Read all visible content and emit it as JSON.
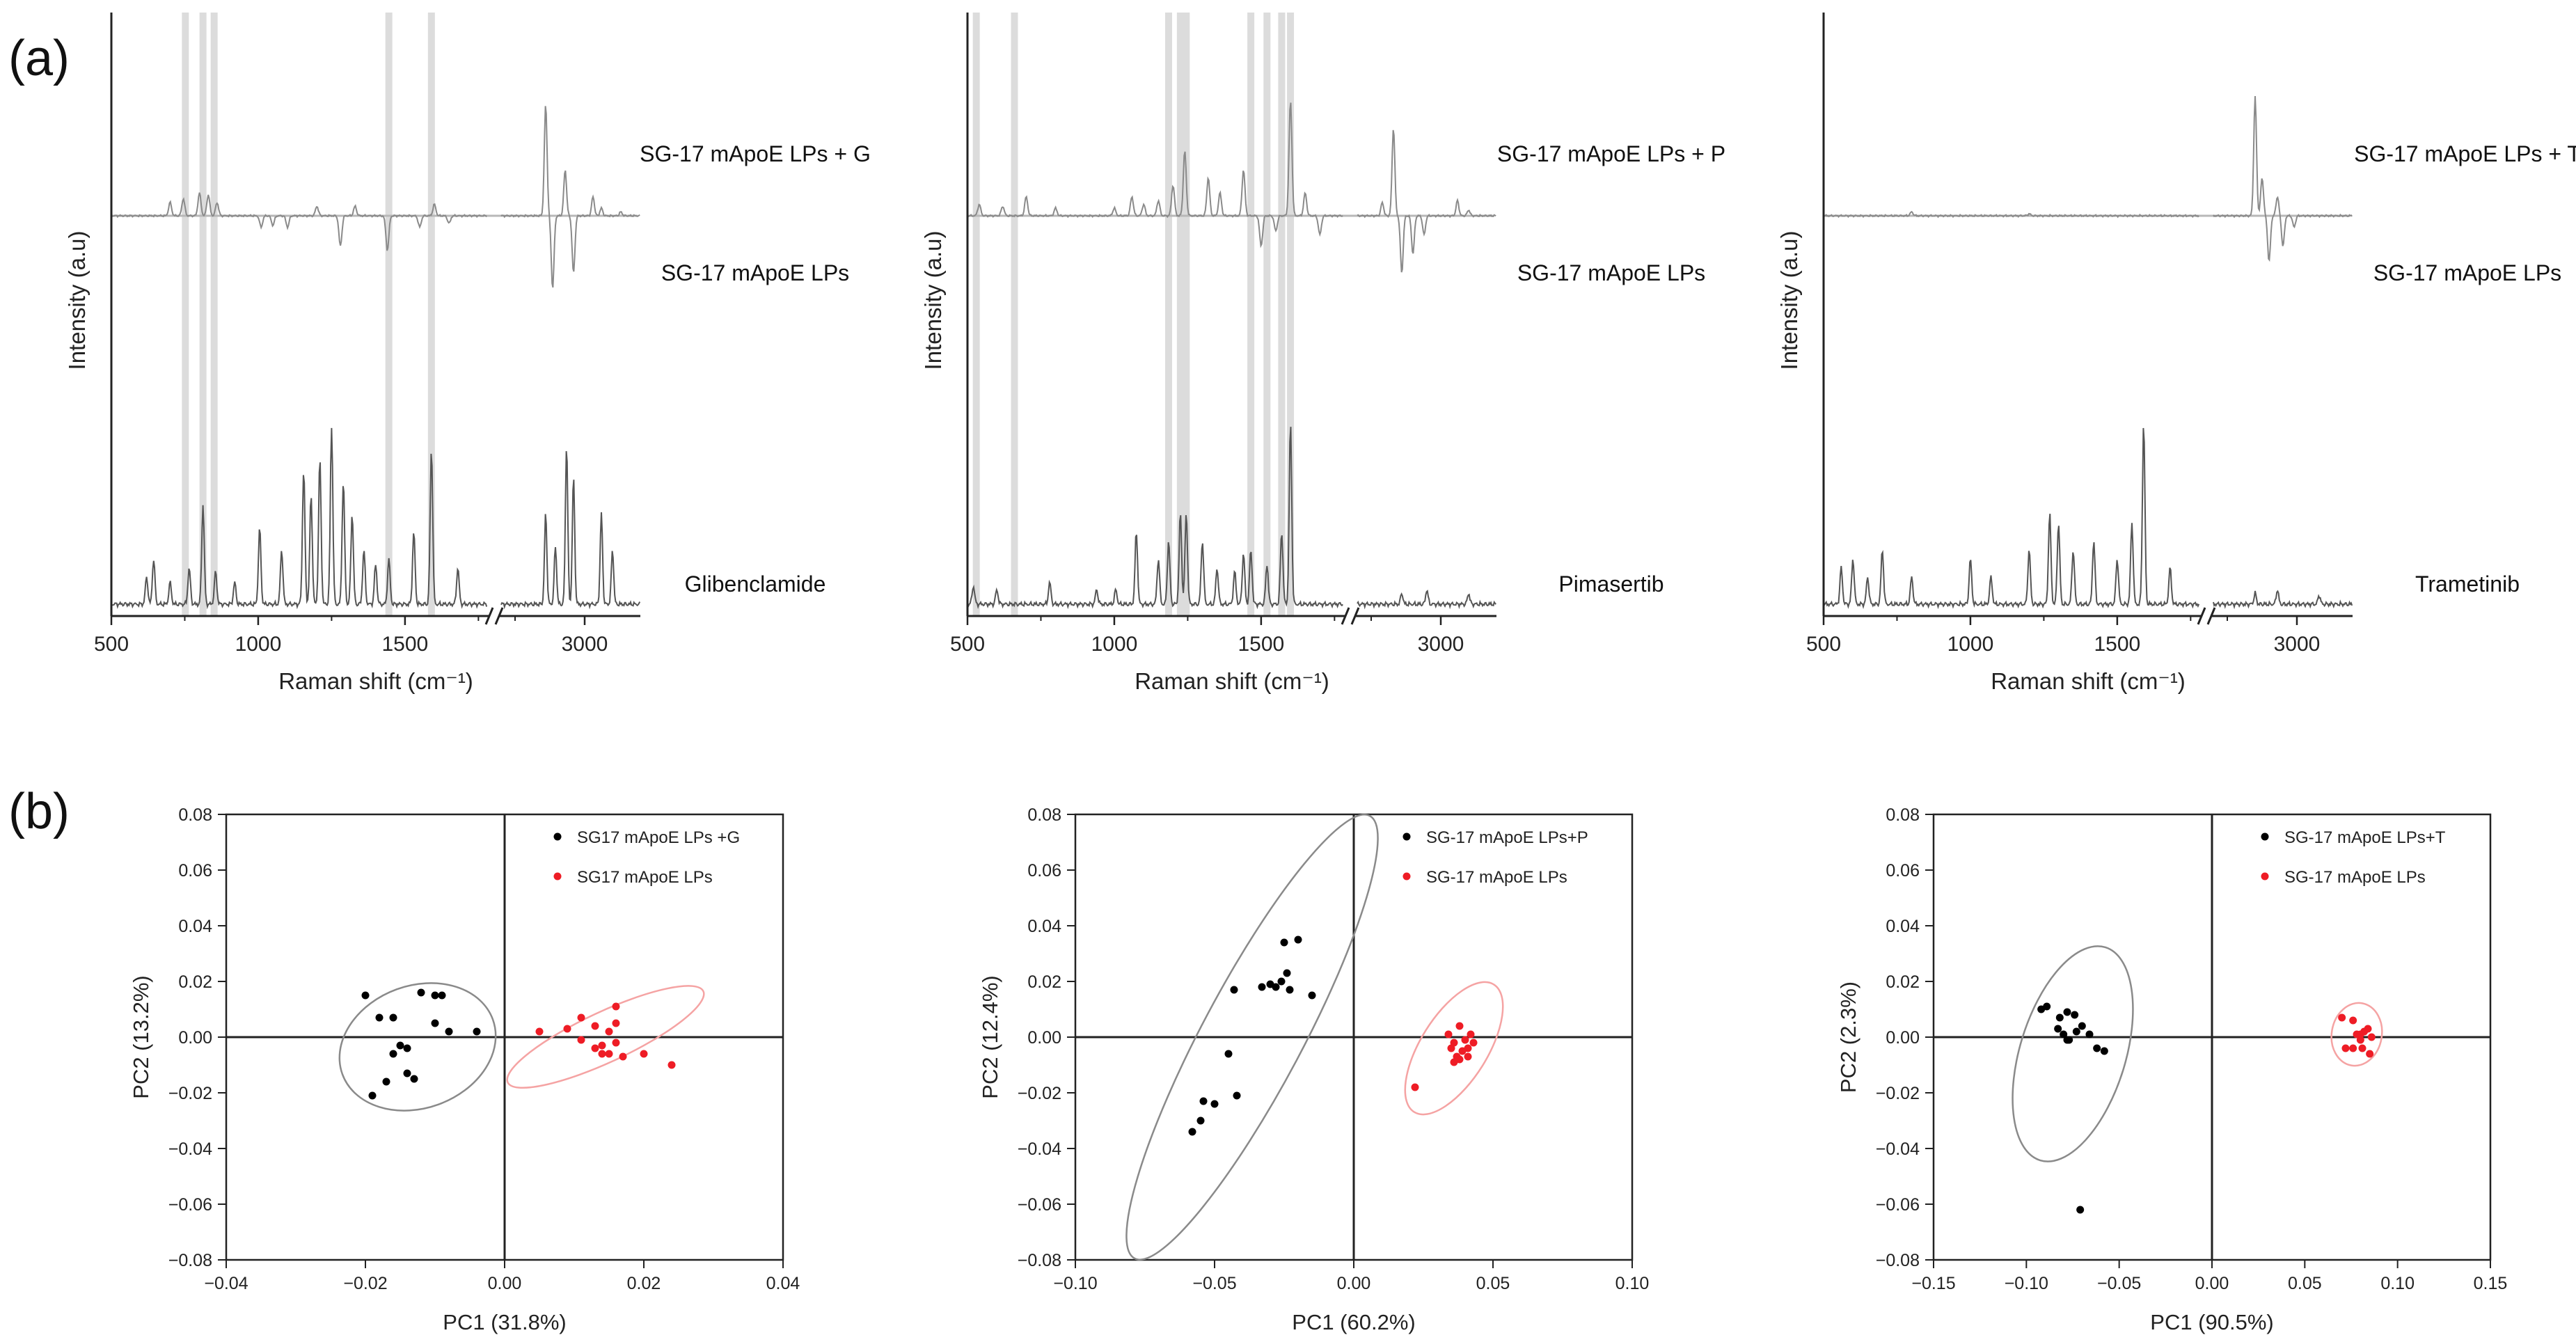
{
  "figure": {
    "panel_labels": [
      "(a)",
      "(b)"
    ],
    "colors": {
      "sample": "#000000",
      "control": "#ee1c25",
      "ellipse_sample": "#8a8a8a",
      "ellipse_control": "#f5a3a3",
      "highlight": "#dcdcdc",
      "spectrum": "#555555",
      "difference": "#8a8a8a"
    }
  },
  "chart_data": [
    {
      "type": "line",
      "panel": "a",
      "title": "",
      "xlabel": "Raman shift (cm⁻¹)",
      "ylabel": "Intensity (a.u)",
      "x_ticks": [
        "500",
        "1000",
        "1500",
        "3000"
      ],
      "x_ranges": [
        [
          500,
          1780
        ],
        [
          2700,
          3200
        ]
      ],
      "series_labels": [
        "SG-17 mApoE LPs + G",
        "SG-17 mApoE LPs",
        "Glibenclamide"
      ],
      "highlight_bands": [
        752,
        812,
        850,
        1445,
        1590
      ],
      "drug_peaks": [
        [
          620,
          0.15
        ],
        [
          644,
          0.25
        ],
        [
          700,
          0.12
        ],
        [
          765,
          0.2
        ],
        [
          812,
          0.55
        ],
        [
          855,
          0.18
        ],
        [
          920,
          0.12
        ],
        [
          1005,
          0.42
        ],
        [
          1080,
          0.3
        ],
        [
          1155,
          0.74
        ],
        [
          1180,
          0.6
        ],
        [
          1210,
          0.8
        ],
        [
          1250,
          0.98
        ],
        [
          1290,
          0.68
        ],
        [
          1320,
          0.5
        ],
        [
          1360,
          0.3
        ],
        [
          1400,
          0.22
        ],
        [
          1445,
          0.25
        ],
        [
          1530,
          0.4
        ],
        [
          1590,
          0.86
        ],
        [
          1680,
          0.2
        ],
        [
          2860,
          0.5
        ],
        [
          2895,
          0.32
        ],
        [
          2935,
          0.88
        ],
        [
          2960,
          0.7
        ],
        [
          3060,
          0.5
        ],
        [
          3100,
          0.3
        ]
      ],
      "difference_peaks": [
        [
          700,
          0.35
        ],
        [
          745,
          0.45
        ],
        [
          800,
          0.6
        ],
        [
          830,
          0.55
        ],
        [
          860,
          0.35
        ],
        [
          1010,
          -0.3
        ],
        [
          1050,
          -0.25
        ],
        [
          1100,
          -0.3
        ],
        [
          1200,
          0.25
        ],
        [
          1280,
          -0.8
        ],
        [
          1330,
          0.25
        ],
        [
          1440,
          -0.9
        ],
        [
          1550,
          -0.3
        ],
        [
          1600,
          0.3
        ],
        [
          1650,
          -0.2
        ],
        [
          2860,
          2.9
        ],
        [
          2885,
          -1.9
        ],
        [
          2930,
          1.2
        ],
        [
          2960,
          -1.5
        ],
        [
          3030,
          0.5
        ],
        [
          3060,
          0.2
        ],
        [
          3130,
          0.1
        ]
      ]
    },
    {
      "type": "line",
      "panel": "a",
      "title": "",
      "xlabel": "Raman shift (cm⁻¹)",
      "ylabel": "Intensity (a.u)",
      "x_ticks": [
        "500",
        "1000",
        "1500",
        "3000"
      ],
      "x_ranges": [
        [
          500,
          1780
        ],
        [
          2700,
          3200
        ]
      ],
      "series_labels": [
        "SG-17 mApoE LPs + P",
        "SG-17 mApoE LPs",
        "Pimasertib"
      ],
      "highlight_bands": [
        530,
        660,
        1185,
        1225,
        1245,
        1465,
        1520,
        1570,
        1600
      ],
      "drug_peaks": [
        [
          520,
          0.1
        ],
        [
          600,
          0.08
        ],
        [
          780,
          0.12
        ],
        [
          940,
          0.08
        ],
        [
          1005,
          0.08
        ],
        [
          1075,
          0.4
        ],
        [
          1150,
          0.25
        ],
        [
          1185,
          0.35
        ],
        [
          1225,
          0.5
        ],
        [
          1245,
          0.5
        ],
        [
          1300,
          0.35
        ],
        [
          1350,
          0.2
        ],
        [
          1410,
          0.18
        ],
        [
          1440,
          0.28
        ],
        [
          1465,
          0.3
        ],
        [
          1520,
          0.22
        ],
        [
          1570,
          0.4
        ],
        [
          1600,
          1.0
        ],
        [
          2860,
          0.06
        ],
        [
          2950,
          0.08
        ],
        [
          3100,
          0.06
        ]
      ],
      "difference_peaks": [
        [
          540,
          0.3
        ],
        [
          620,
          0.25
        ],
        [
          700,
          0.5
        ],
        [
          800,
          0.2
        ],
        [
          1000,
          0.2
        ],
        [
          1060,
          0.5
        ],
        [
          1100,
          0.3
        ],
        [
          1150,
          0.4
        ],
        [
          1200,
          0.8
        ],
        [
          1240,
          1.7
        ],
        [
          1320,
          1.0
        ],
        [
          1360,
          0.6
        ],
        [
          1440,
          1.2
        ],
        [
          1500,
          -0.8
        ],
        [
          1550,
          -0.4
        ],
        [
          1600,
          3.0
        ],
        [
          1650,
          0.6
        ],
        [
          1700,
          -0.5
        ],
        [
          2790,
          0.35
        ],
        [
          2830,
          2.3
        ],
        [
          2860,
          -1.5
        ],
        [
          2900,
          -1.0
        ],
        [
          2940,
          -0.5
        ],
        [
          3060,
          0.4
        ],
        [
          3100,
          0.15
        ]
      ]
    },
    {
      "type": "line",
      "panel": "a",
      "title": "",
      "xlabel": "Raman shift (cm⁻¹)",
      "ylabel": "Intensity (a.u)",
      "x_ticks": [
        "500",
        "1000",
        "1500",
        "3000"
      ],
      "x_ranges": [
        [
          500,
          1780
        ],
        [
          2700,
          3200
        ]
      ],
      "series_labels": [
        "SG-17 mApoE LPs + T",
        "SG-17 mApoE LPs",
        "Trametinib"
      ],
      "highlight_bands": [],
      "drug_peaks": [
        [
          560,
          0.2
        ],
        [
          600,
          0.25
        ],
        [
          650,
          0.15
        ],
        [
          700,
          0.3
        ],
        [
          800,
          0.15
        ],
        [
          1000,
          0.25
        ],
        [
          1070,
          0.15
        ],
        [
          1200,
          0.3
        ],
        [
          1270,
          0.5
        ],
        [
          1300,
          0.45
        ],
        [
          1350,
          0.3
        ],
        [
          1420,
          0.35
        ],
        [
          1500,
          0.25
        ],
        [
          1550,
          0.45
        ],
        [
          1590,
          1.0
        ],
        [
          1680,
          0.2
        ],
        [
          2850,
          0.06
        ],
        [
          2930,
          0.08
        ],
        [
          3080,
          0.05
        ]
      ],
      "difference_peaks": [
        [
          800,
          0.1
        ],
        [
          1200,
          0.05
        ],
        [
          2850,
          3.1
        ],
        [
          2875,
          1.0
        ],
        [
          2900,
          -1.2
        ],
        [
          2930,
          0.5
        ],
        [
          2950,
          -0.8
        ],
        [
          2990,
          -0.3
        ]
      ]
    },
    {
      "type": "scatter",
      "panel": "b",
      "title": "",
      "xlabel": "PC1 (31.8%)",
      "ylabel": "PC2 (13.2%)",
      "xlim": [
        -0.04,
        0.04
      ],
      "ylim": [
        -0.08,
        0.08
      ],
      "x_ticks": [
        "−0.04",
        "−0.02",
        "0.00",
        "0.02",
        "0.04"
      ],
      "y_ticks": [
        "0.08",
        "0.06",
        "0.04",
        "0.02",
        "0.00",
        "−0.02",
        "−0.04",
        "−0.06",
        "−0.08"
      ],
      "x_tick_values": [
        -0.04,
        -0.02,
        0,
        0.02,
        0.04
      ],
      "y_tick_values": [
        0.08,
        0.06,
        0.04,
        0.02,
        0,
        -0.02,
        -0.04,
        -0.06,
        -0.08
      ],
      "legend_position": "top-right",
      "series": [
        {
          "name": "SG17 mApoE LPs +G",
          "color": "#000000",
          "points": [
            [
              -0.02,
              0.015
            ],
            [
              -0.018,
              0.007
            ],
            [
              -0.016,
              0.007
            ],
            [
              -0.016,
              -0.006
            ],
            [
              -0.015,
              -0.003
            ],
            [
              -0.014,
              -0.004
            ],
            [
              -0.014,
              -0.013
            ],
            [
              -0.013,
              -0.015
            ],
            [
              -0.012,
              0.016
            ],
            [
              -0.01,
              0.015
            ],
            [
              -0.009,
              0.015
            ],
            [
              -0.01,
              0.005
            ],
            [
              -0.008,
              0.002
            ],
            [
              -0.004,
              0.002
            ],
            [
              -0.019,
              -0.021
            ],
            [
              -0.017,
              -0.016
            ]
          ],
          "ellipse": {
            "cx": -0.0125,
            "cy": -0.0035,
            "rx": 0.0115,
            "ry": 0.022,
            "angle_deg": -20
          }
        },
        {
          "name": "SG17 mApoE LPs",
          "color": "#ee1c25",
          "points": [
            [
              0.005,
              0.002
            ],
            [
              0.009,
              0.003
            ],
            [
              0.011,
              0.007
            ],
            [
              0.011,
              -0.001
            ],
            [
              0.013,
              0.004
            ],
            [
              0.014,
              -0.003
            ],
            [
              0.015,
              0.002
            ],
            [
              0.015,
              -0.006
            ],
            [
              0.016,
              0.011
            ],
            [
              0.016,
              0.005
            ],
            [
              0.017,
              -0.007
            ],
            [
              0.014,
              -0.006
            ],
            [
              0.02,
              -0.006
            ],
            [
              0.024,
              -0.01
            ],
            [
              0.013,
              -0.004
            ],
            [
              0.016,
              -0.002
            ]
          ],
          "ellipse": {
            "cx": 0.0145,
            "cy": 0.0001,
            "rx": 0.0155,
            "ry": 0.009,
            "angle_deg": -25
          }
        }
      ]
    },
    {
      "type": "scatter",
      "panel": "b",
      "title": "",
      "xlabel": "PC1 (60.2%)",
      "ylabel": "PC2 (12.4%)",
      "xlim": [
        -0.1,
        0.1
      ],
      "ylim": [
        -0.08,
        0.08
      ],
      "x_ticks": [
        "−0.10",
        "−0.05",
        "0.00",
        "0.05",
        "0.10"
      ],
      "y_ticks": [
        "0.08",
        "0.06",
        "0.04",
        "0.02",
        "0.00",
        "−0.02",
        "−0.04",
        "−0.06",
        "−0.08"
      ],
      "x_tick_values": [
        -0.1,
        -0.05,
        0,
        0.05,
        0.1
      ],
      "y_tick_values": [
        0.08,
        0.06,
        0.04,
        0.02,
        0,
        -0.02,
        -0.04,
        -0.06,
        -0.08
      ],
      "legend_position": "top-right",
      "series": [
        {
          "name": "SG-17 mApoE LPs+P",
          "color": "#000000",
          "points": [
            [
              -0.025,
              0.034
            ],
            [
              -0.02,
              0.035
            ],
            [
              -0.024,
              0.023
            ],
            [
              -0.026,
              0.02
            ],
            [
              -0.03,
              0.019
            ],
            [
              -0.033,
              0.018
            ],
            [
              -0.028,
              0.018
            ],
            [
              -0.023,
              0.017
            ],
            [
              -0.015,
              0.015
            ],
            [
              -0.043,
              0.017
            ],
            [
              -0.045,
              -0.006
            ],
            [
              -0.042,
              -0.021
            ],
            [
              -0.054,
              -0.023
            ],
            [
              -0.05,
              -0.024
            ],
            [
              -0.055,
              -0.03
            ],
            [
              -0.058,
              -0.034
            ]
          ],
          "ellipse": {
            "cx": -0.0365,
            "cy": 0.0,
            "rx": 0.09,
            "ry": 0.018,
            "angle_deg": -62
          }
        },
        {
          "name": "SG-17 mApoE LPs",
          "color": "#ee1c25",
          "points": [
            [
              0.022,
              -0.018
            ],
            [
              0.034,
              0.001
            ],
            [
              0.035,
              -0.004
            ],
            [
              0.036,
              -0.002
            ],
            [
              0.037,
              -0.007
            ],
            [
              0.038,
              0.004
            ],
            [
              0.039,
              -0.005
            ],
            [
              0.04,
              -0.001
            ],
            [
              0.041,
              -0.004
            ],
            [
              0.042,
              0.001
            ],
            [
              0.043,
              -0.002
            ],
            [
              0.038,
              -0.008
            ],
            [
              0.036,
              -0.009
            ],
            [
              0.041,
              -0.007
            ]
          ],
          "ellipse": {
            "cx": 0.036,
            "cy": -0.004,
            "rx": 0.027,
            "ry": 0.012,
            "angle_deg": -58
          }
        }
      ]
    },
    {
      "type": "scatter",
      "panel": "b",
      "title": "",
      "xlabel": "PC1 (90.5%)",
      "ylabel": "PC2 (2.3%)",
      "xlim": [
        -0.15,
        0.15
      ],
      "ylim": [
        -0.08,
        0.08
      ],
      "x_ticks": [
        "−0.15",
        "−0.10",
        "−0.05",
        "0.00",
        "0.05",
        "0.10",
        "0.15"
      ],
      "y_ticks": [
        "0.08",
        "0.06",
        "0.04",
        "0.02",
        "0.00",
        "−0.02",
        "−0.04",
        "−0.06",
        "−0.08"
      ],
      "x_tick_values": [
        -0.15,
        -0.1,
        -0.05,
        0,
        0.05,
        0.1,
        0.15
      ],
      "y_tick_values": [
        0.08,
        0.06,
        0.04,
        0.02,
        0,
        -0.02,
        -0.04,
        -0.06,
        -0.08
      ],
      "legend_position": "top-right",
      "series": [
        {
          "name": "SG-17 mApoE LPs+T",
          "color": "#000000",
          "points": [
            [
              -0.092,
              0.01
            ],
            [
              -0.089,
              0.011
            ],
            [
              -0.082,
              0.007
            ],
            [
              -0.078,
              0.009
            ],
            [
              -0.074,
              0.008
            ],
            [
              -0.083,
              0.003
            ],
            [
              -0.08,
              0.001
            ],
            [
              -0.077,
              -0.001
            ],
            [
              -0.073,
              0.002
            ],
            [
              -0.07,
              0.004
            ],
            [
              -0.066,
              0.001
            ],
            [
              -0.062,
              -0.004
            ],
            [
              -0.058,
              -0.005
            ],
            [
              -0.078,
              -0.001
            ],
            [
              -0.071,
              -0.062
            ]
          ],
          "ellipse": {
            "cx": -0.075,
            "cy": -0.006,
            "rx": 0.06,
            "ry": 0.019,
            "angle_deg": -73
          }
        },
        {
          "name": "SG-17 mApoE LPs",
          "color": "#ee1c25",
          "points": [
            [
              0.07,
              0.007
            ],
            [
              0.076,
              0.006
            ],
            [
              0.078,
              0.001
            ],
            [
              0.08,
              -0.001
            ],
            [
              0.082,
              0.002
            ],
            [
              0.084,
              0.003
            ],
            [
              0.086,
              0.0
            ],
            [
              0.081,
              -0.004
            ],
            [
              0.072,
              -0.004
            ],
            [
              0.076,
              -0.004
            ],
            [
              0.085,
              -0.006
            ],
            [
              0.08,
              0.001
            ]
          ],
          "ellipse": {
            "cx": 0.078,
            "cy": 0.001,
            "rx": 0.017,
            "ry": 0.009,
            "angle_deg": -80
          }
        }
      ]
    }
  ]
}
